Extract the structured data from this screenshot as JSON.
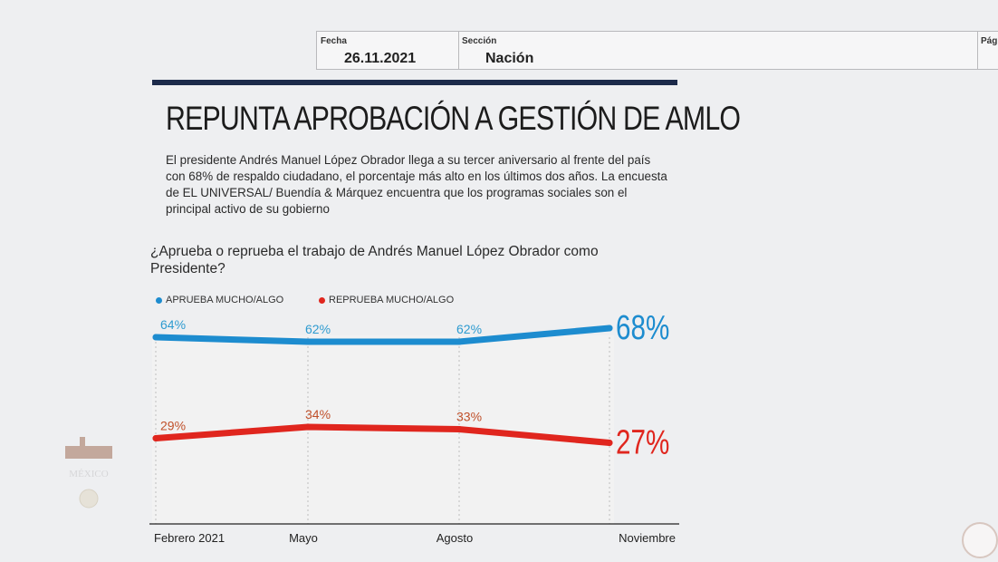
{
  "header": {
    "fecha_label": "Fecha",
    "fecha_value": "26.11.2021",
    "seccion_label": "Sección",
    "seccion_value": "Nación",
    "pagina_label": "Pág"
  },
  "article": {
    "title": "REPUNTA APROBACIÓN A GESTIÓN DE AMLO",
    "lede": "El presidente Andrés Manuel López Obrador llega a su tercer aniversario al frente del país con 68% de respaldo ciudadano, el porcentaje más alto en los últimos dos años. La encuesta de EL UNIVERSAL/ Buendía & Márquez encuentra que los programas sociales son el principal activo de su gobierno",
    "question": "¿Aprueba o reprueba el trabajo de Andrés Manuel López Obrador como Presidente?"
  },
  "watermark": {
    "logo_text": "MÉXICO"
  },
  "chart_data": {
    "type": "line",
    "title": "¿Aprueba o reprueba el trabajo de Andrés Manuel López Obrador como Presidente?",
    "categories": [
      "Febrero 2021",
      "Mayo",
      "Agosto",
      "Noviembre"
    ],
    "series": [
      {
        "name": "APRUEBA MUCHO/ALGO",
        "values": [
          64,
          62,
          62,
          68
        ],
        "labels": [
          "64%",
          "62%",
          "62%",
          "68%"
        ],
        "color": "#1d8ccf"
      },
      {
        "name": "REPRUEBA MUCHO/ALGO",
        "values": [
          29,
          34,
          33,
          27
        ],
        "labels": [
          "29%",
          "34%",
          "33%",
          "27%"
        ],
        "color": "#e0261e"
      }
    ],
    "legend_position": "top-left",
    "grid": "vertical dashed",
    "unit": "%"
  }
}
